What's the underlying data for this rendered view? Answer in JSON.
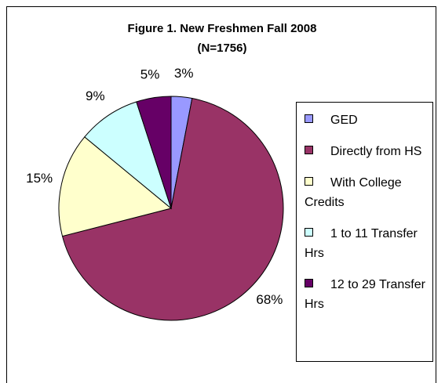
{
  "chart_data": {
    "type": "pie",
    "title": "Figure 1.  New Freshmen Fall 2008",
    "subtitle": "(N=1756)",
    "categories": [
      "GED",
      "Directly from HS",
      "With College Credits",
      "1 to 11 Transfer Hrs",
      "12 to 29 Transfer Hrs"
    ],
    "values": [
      3,
      68,
      15,
      9,
      5
    ],
    "value_labels": [
      "3%",
      "68%",
      "15%",
      "9%",
      "5%"
    ],
    "colors": [
      "#9999ff",
      "#993366",
      "#ffffcc",
      "#ccffff",
      "#660066"
    ],
    "legend": "right"
  }
}
